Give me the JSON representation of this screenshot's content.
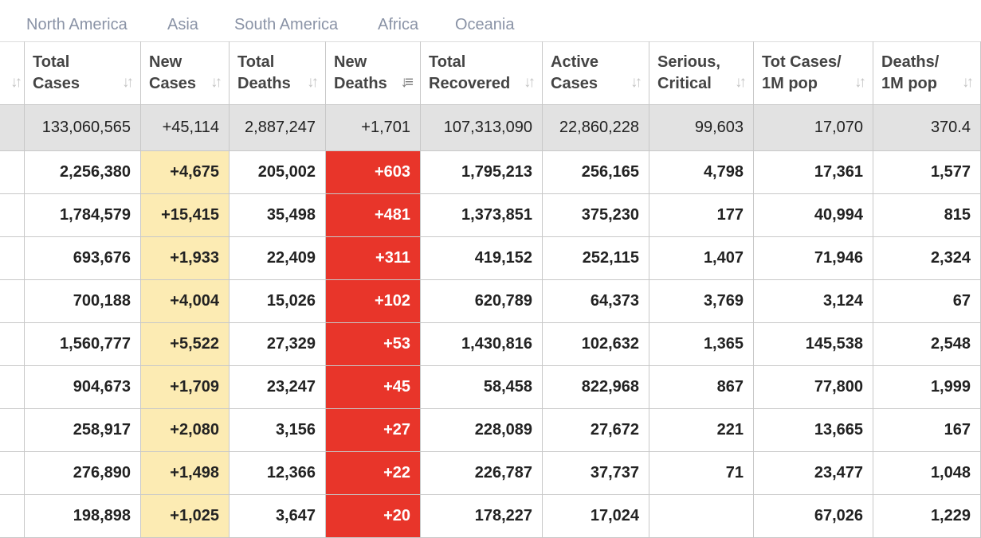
{
  "tabs": [
    "North America",
    "Asia",
    "South America",
    "Africa",
    "Oceania"
  ],
  "columns": [
    {
      "line1": "Total",
      "line2": "Cases",
      "sort_icon": "sort-icon"
    },
    {
      "line1": "New",
      "line2": "Cases",
      "sort_icon": "sort-icon"
    },
    {
      "line1": "Total",
      "line2": "Deaths",
      "sort_icon": "sort-icon"
    },
    {
      "line1": "New",
      "line2": "Deaths",
      "sort_icon": "sort-desc-icon"
    },
    {
      "line1": "Total",
      "line2": "Recovered",
      "sort_icon": "sort-icon"
    },
    {
      "line1": "Active",
      "line2": "Cases",
      "sort_icon": "sort-icon"
    },
    {
      "line1": "Serious,",
      "line2": "Critical",
      "sort_icon": "sort-icon"
    },
    {
      "line1": "Tot Cases/",
      "line2": "1M pop",
      "sort_icon": "sort-icon"
    },
    {
      "line1": "Deaths/",
      "line2": "1M pop",
      "sort_icon": "sort-icon"
    }
  ],
  "total_row": [
    "133,060,565",
    "+45,114",
    "2,887,247",
    "+1,701",
    "107,313,090",
    "22,860,228",
    "99,603",
    "17,070",
    "370.4"
  ],
  "rows": [
    [
      "2,256,380",
      "+4,675",
      "205,002",
      "+603",
      "1,795,213",
      "256,165",
      "4,798",
      "17,361",
      "1,577"
    ],
    [
      "1,784,579",
      "+15,415",
      "35,498",
      "+481",
      "1,373,851",
      "375,230",
      "177",
      "40,994",
      "815"
    ],
    [
      "693,676",
      "+1,933",
      "22,409",
      "+311",
      "419,152",
      "252,115",
      "1,407",
      "71,946",
      "2,324"
    ],
    [
      "700,188",
      "+4,004",
      "15,026",
      "+102",
      "620,789",
      "64,373",
      "3,769",
      "3,124",
      "67"
    ],
    [
      "1,560,777",
      "+5,522",
      "27,329",
      "+53",
      "1,430,816",
      "102,632",
      "1,365",
      "145,538",
      "2,548"
    ],
    [
      "904,673",
      "+1,709",
      "23,247",
      "+45",
      "58,458",
      "822,968",
      "867",
      "77,800",
      "1,999"
    ],
    [
      "258,917",
      "+2,080",
      "3,156",
      "+27",
      "228,089",
      "27,672",
      "221",
      "13,665",
      "167"
    ],
    [
      "276,890",
      "+1,498",
      "12,366",
      "+22",
      "226,787",
      "37,737",
      "71",
      "23,477",
      "1,048"
    ],
    [
      "198,898",
      "+1,025",
      "3,647",
      "+20",
      "178,227",
      "17,024",
      "",
      "67,026",
      "1,229"
    ]
  ],
  "colors": {
    "new_cases_bg": "#fcebb3",
    "new_deaths_bg": "#e8352a",
    "total_row_bg": "#e2e2e2",
    "tab_text": "#8a93a6"
  }
}
